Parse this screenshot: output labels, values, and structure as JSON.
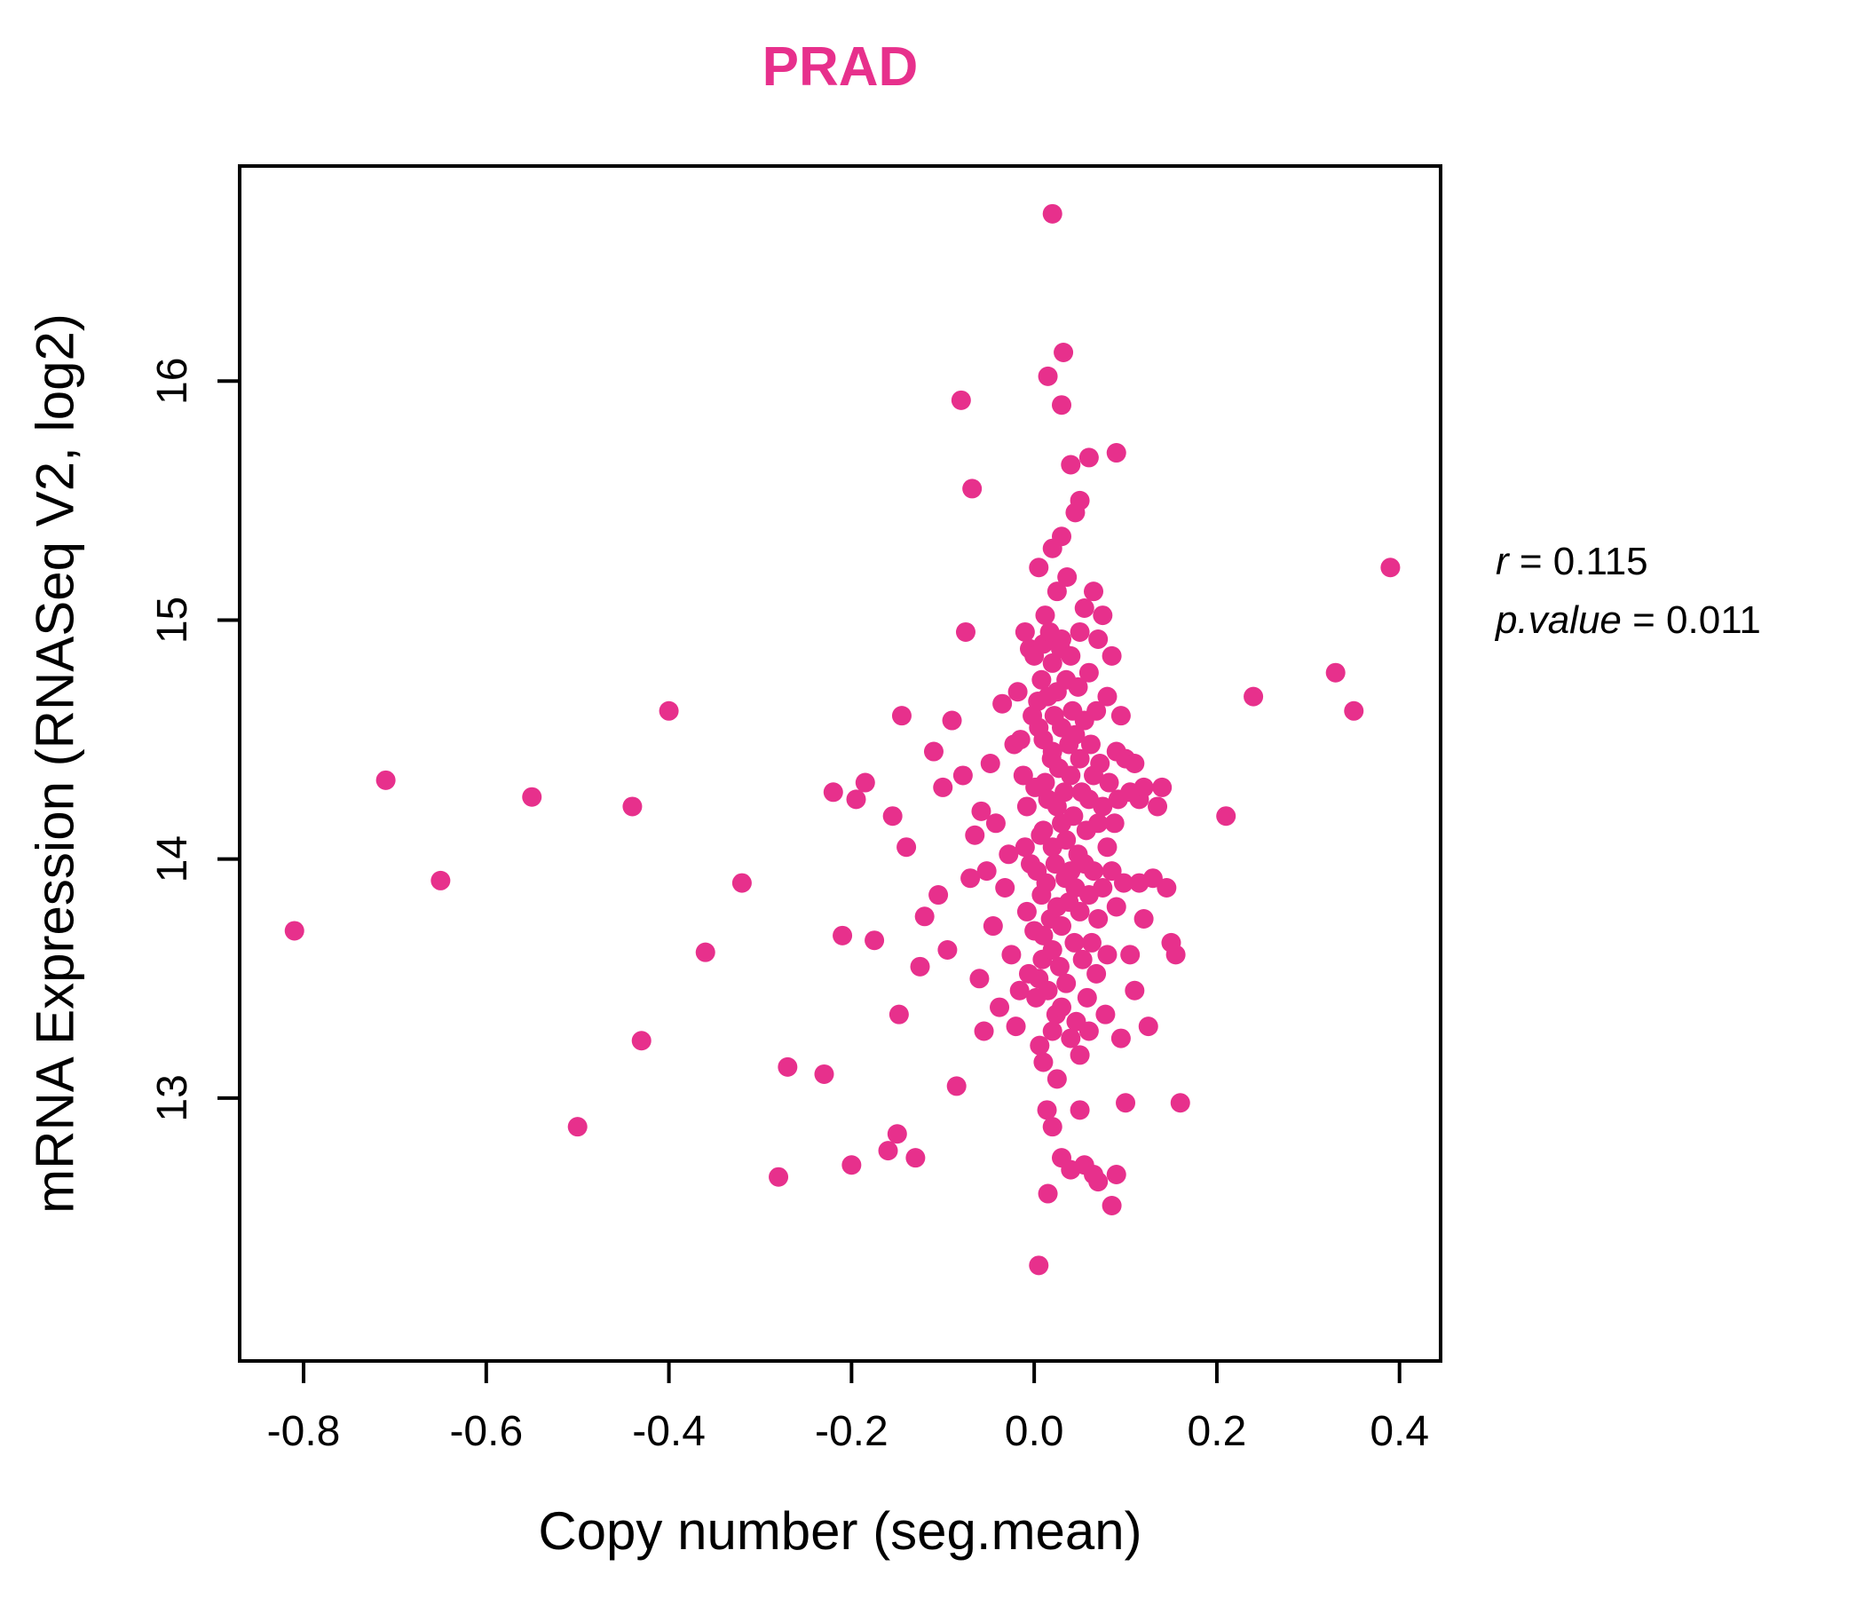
{
  "colors": {
    "accent": "#E7308C",
    "axis": "#000000"
  },
  "annotation": {
    "r_var": "r",
    "r_eq": " = 0.115",
    "p_var": "p.value",
    "p_eq": " = 0.011"
  },
  "chart_data": {
    "type": "scatter",
    "title": "PRAD",
    "xlabel": "Copy number (seg.mean)",
    "ylabel": "mRNA Expression (RNASeq V2, log2)",
    "x_tick_labels": [
      "-0.8",
      "-0.6",
      "-0.4",
      "-0.2",
      "0.0",
      "0.2",
      "0.4"
    ],
    "y_tick_labels": [
      "13",
      "14",
      "15",
      "16"
    ],
    "xlim": [
      -0.87,
      0.445
    ],
    "ylim": [
      11.9,
      16.9
    ],
    "grid": false,
    "legend": "none",
    "r": 0.115,
    "p_value": 0.011,
    "point_radius": 11,
    "points": [
      [
        -0.81,
        13.7
      ],
      [
        -0.71,
        14.33
      ],
      [
        -0.65,
        13.91
      ],
      [
        -0.55,
        14.26
      ],
      [
        -0.5,
        12.88
      ],
      [
        -0.44,
        14.22
      ],
      [
        -0.43,
        13.24
      ],
      [
        -0.4,
        14.62
      ],
      [
        -0.36,
        13.61
      ],
      [
        -0.32,
        13.9
      ],
      [
        -0.28,
        12.67
      ],
      [
        -0.27,
        13.13
      ],
      [
        -0.23,
        13.1
      ],
      [
        -0.22,
        14.28
      ],
      [
        -0.21,
        13.68
      ],
      [
        -0.2,
        12.72
      ],
      [
        -0.195,
        14.25
      ],
      [
        -0.185,
        14.32
      ],
      [
        -0.175,
        13.66
      ],
      [
        -0.16,
        12.78
      ],
      [
        -0.155,
        14.18
      ],
      [
        -0.15,
        12.85
      ],
      [
        -0.148,
        13.35
      ],
      [
        -0.145,
        14.6
      ],
      [
        -0.14,
        14.05
      ],
      [
        -0.13,
        12.75
      ],
      [
        -0.125,
        13.55
      ],
      [
        -0.12,
        13.76
      ],
      [
        -0.11,
        14.45
      ],
      [
        -0.105,
        13.85
      ],
      [
        -0.1,
        14.3
      ],
      [
        -0.095,
        13.62
      ],
      [
        -0.09,
        14.58
      ],
      [
        -0.085,
        13.05
      ],
      [
        -0.08,
        15.92
      ],
      [
        -0.078,
        14.35
      ],
      [
        -0.075,
        14.95
      ],
      [
        -0.07,
        13.92
      ],
      [
        -0.068,
        15.55
      ],
      [
        -0.065,
        14.1
      ],
      [
        -0.06,
        13.5
      ],
      [
        -0.058,
        14.2
      ],
      [
        -0.055,
        13.28
      ],
      [
        -0.052,
        13.95
      ],
      [
        -0.048,
        14.4
      ],
      [
        -0.045,
        13.72
      ],
      [
        -0.042,
        14.15
      ],
      [
        -0.038,
        13.38
      ],
      [
        -0.035,
        14.65
      ],
      [
        -0.032,
        13.88
      ],
      [
        -0.028,
        14.02
      ],
      [
        -0.025,
        13.6
      ],
      [
        -0.022,
        14.48
      ],
      [
        -0.02,
        13.3
      ],
      [
        -0.018,
        14.7
      ],
      [
        -0.016,
        13.45
      ],
      [
        -0.015,
        14.5
      ],
      [
        -0.012,
        14.35
      ],
      [
        -0.01,
        14.95
      ],
      [
        -0.01,
        14.05
      ],
      [
        -0.008,
        13.78
      ],
      [
        -0.008,
        14.22
      ],
      [
        -0.006,
        13.52
      ],
      [
        -0.005,
        14.88
      ],
      [
        -0.004,
        13.98
      ],
      [
        -0.002,
        14.6
      ],
      [
        0.0,
        14.85
      ],
      [
        0.0,
        13.7
      ],
      [
        0.001,
        14.3
      ],
      [
        0.002,
        13.42
      ],
      [
        0.003,
        13.95
      ],
      [
        0.004,
        14.66
      ],
      [
        0.005,
        15.22
      ],
      [
        0.005,
        14.55
      ],
      [
        0.005,
        13.5
      ],
      [
        0.005,
        12.3
      ],
      [
        0.006,
        13.22
      ],
      [
        0.007,
        14.1
      ],
      [
        0.008,
        13.85
      ],
      [
        0.008,
        14.75
      ],
      [
        0.009,
        13.58
      ],
      [
        0.01,
        14.9
      ],
      [
        0.01,
        14.5
      ],
      [
        0.01,
        14.12
      ],
      [
        0.01,
        13.68
      ],
      [
        0.01,
        13.15
      ],
      [
        0.012,
        15.02
      ],
      [
        0.012,
        14.32
      ],
      [
        0.013,
        13.9
      ],
      [
        0.014,
        12.95
      ],
      [
        0.015,
        16.02
      ],
      [
        0.015,
        14.68
      ],
      [
        0.015,
        14.25
      ],
      [
        0.015,
        13.45
      ],
      [
        0.015,
        12.6
      ],
      [
        0.017,
        14.95
      ],
      [
        0.018,
        13.75
      ],
      [
        0.019,
        14.42
      ],
      [
        0.02,
        16.7
      ],
      [
        0.02,
        15.3
      ],
      [
        0.02,
        14.82
      ],
      [
        0.02,
        14.45
      ],
      [
        0.02,
        14.05
      ],
      [
        0.02,
        13.62
      ],
      [
        0.02,
        13.28
      ],
      [
        0.02,
        12.88
      ],
      [
        0.022,
        14.6
      ],
      [
        0.023,
        13.98
      ],
      [
        0.024,
        13.35
      ],
      [
        0.025,
        15.12
      ],
      [
        0.025,
        14.7
      ],
      [
        0.025,
        14.22
      ],
      [
        0.025,
        13.8
      ],
      [
        0.025,
        13.08
      ],
      [
        0.027,
        14.38
      ],
      [
        0.028,
        13.55
      ],
      [
        0.029,
        14.88
      ],
      [
        0.03,
        15.9
      ],
      [
        0.03,
        15.35
      ],
      [
        0.03,
        14.92
      ],
      [
        0.03,
        14.55
      ],
      [
        0.03,
        14.15
      ],
      [
        0.03,
        13.72
      ],
      [
        0.03,
        13.38
      ],
      [
        0.03,
        12.75
      ],
      [
        0.032,
        16.12
      ],
      [
        0.033,
        14.28
      ],
      [
        0.034,
        13.92
      ],
      [
        0.035,
        14.75
      ],
      [
        0.035,
        14.08
      ],
      [
        0.035,
        13.48
      ],
      [
        0.036,
        15.18
      ],
      [
        0.038,
        14.48
      ],
      [
        0.038,
        13.82
      ],
      [
        0.04,
        15.65
      ],
      [
        0.04,
        14.85
      ],
      [
        0.04,
        14.35
      ],
      [
        0.04,
        13.95
      ],
      [
        0.04,
        13.25
      ],
      [
        0.04,
        12.7
      ],
      [
        0.042,
        14.62
      ],
      [
        0.043,
        14.18
      ],
      [
        0.044,
        13.65
      ],
      [
        0.045,
        15.45
      ],
      [
        0.045,
        14.52
      ],
      [
        0.045,
        13.88
      ],
      [
        0.046,
        13.32
      ],
      [
        0.048,
        14.72
      ],
      [
        0.048,
        14.02
      ],
      [
        0.05,
        15.5
      ],
      [
        0.05,
        14.95
      ],
      [
        0.05,
        14.42
      ],
      [
        0.05,
        13.78
      ],
      [
        0.05,
        13.18
      ],
      [
        0.05,
        12.95
      ],
      [
        0.052,
        14.28
      ],
      [
        0.053,
        13.58
      ],
      [
        0.055,
        15.05
      ],
      [
        0.055,
        14.58
      ],
      [
        0.055,
        13.98
      ],
      [
        0.055,
        12.72
      ],
      [
        0.057,
        14.12
      ],
      [
        0.058,
        13.42
      ],
      [
        0.06,
        15.68
      ],
      [
        0.06,
        14.78
      ],
      [
        0.06,
        14.25
      ],
      [
        0.06,
        13.85
      ],
      [
        0.06,
        13.28
      ],
      [
        0.062,
        14.48
      ],
      [
        0.063,
        13.65
      ],
      [
        0.065,
        15.12
      ],
      [
        0.065,
        14.35
      ],
      [
        0.065,
        13.95
      ],
      [
        0.065,
        12.68
      ],
      [
        0.068,
        14.62
      ],
      [
        0.068,
        13.52
      ],
      [
        0.07,
        14.92
      ],
      [
        0.07,
        14.15
      ],
      [
        0.07,
        13.75
      ],
      [
        0.07,
        12.65
      ],
      [
        0.072,
        14.4
      ],
      [
        0.075,
        15.02
      ],
      [
        0.075,
        14.22
      ],
      [
        0.075,
        13.88
      ],
      [
        0.078,
        13.35
      ],
      [
        0.08,
        14.68
      ],
      [
        0.08,
        14.05
      ],
      [
        0.08,
        13.6
      ],
      [
        0.082,
        14.32
      ],
      [
        0.085,
        14.85
      ],
      [
        0.085,
        13.95
      ],
      [
        0.085,
        12.55
      ],
      [
        0.088,
        14.15
      ],
      [
        0.09,
        15.7
      ],
      [
        0.09,
        14.45
      ],
      [
        0.09,
        13.8
      ],
      [
        0.09,
        12.68
      ],
      [
        0.092,
        14.25
      ],
      [
        0.095,
        13.25
      ],
      [
        0.095,
        14.6
      ],
      [
        0.098,
        13.9
      ],
      [
        0.1,
        14.42
      ],
      [
        0.1,
        12.98
      ],
      [
        0.105,
        13.6
      ],
      [
        0.105,
        14.28
      ],
      [
        0.11,
        14.4
      ],
      [
        0.11,
        13.45
      ],
      [
        0.115,
        14.25
      ],
      [
        0.115,
        13.9
      ],
      [
        0.12,
        14.3
      ],
      [
        0.12,
        13.75
      ],
      [
        0.125,
        13.3
      ],
      [
        0.13,
        13.92
      ],
      [
        0.135,
        14.22
      ],
      [
        0.14,
        14.3
      ],
      [
        0.145,
        13.88
      ],
      [
        0.15,
        13.65
      ],
      [
        0.155,
        13.6
      ],
      [
        0.16,
        12.98
      ],
      [
        0.21,
        14.18
      ],
      [
        0.24,
        14.68
      ],
      [
        0.33,
        14.78
      ],
      [
        0.35,
        14.62
      ],
      [
        0.39,
        15.22
      ]
    ]
  }
}
